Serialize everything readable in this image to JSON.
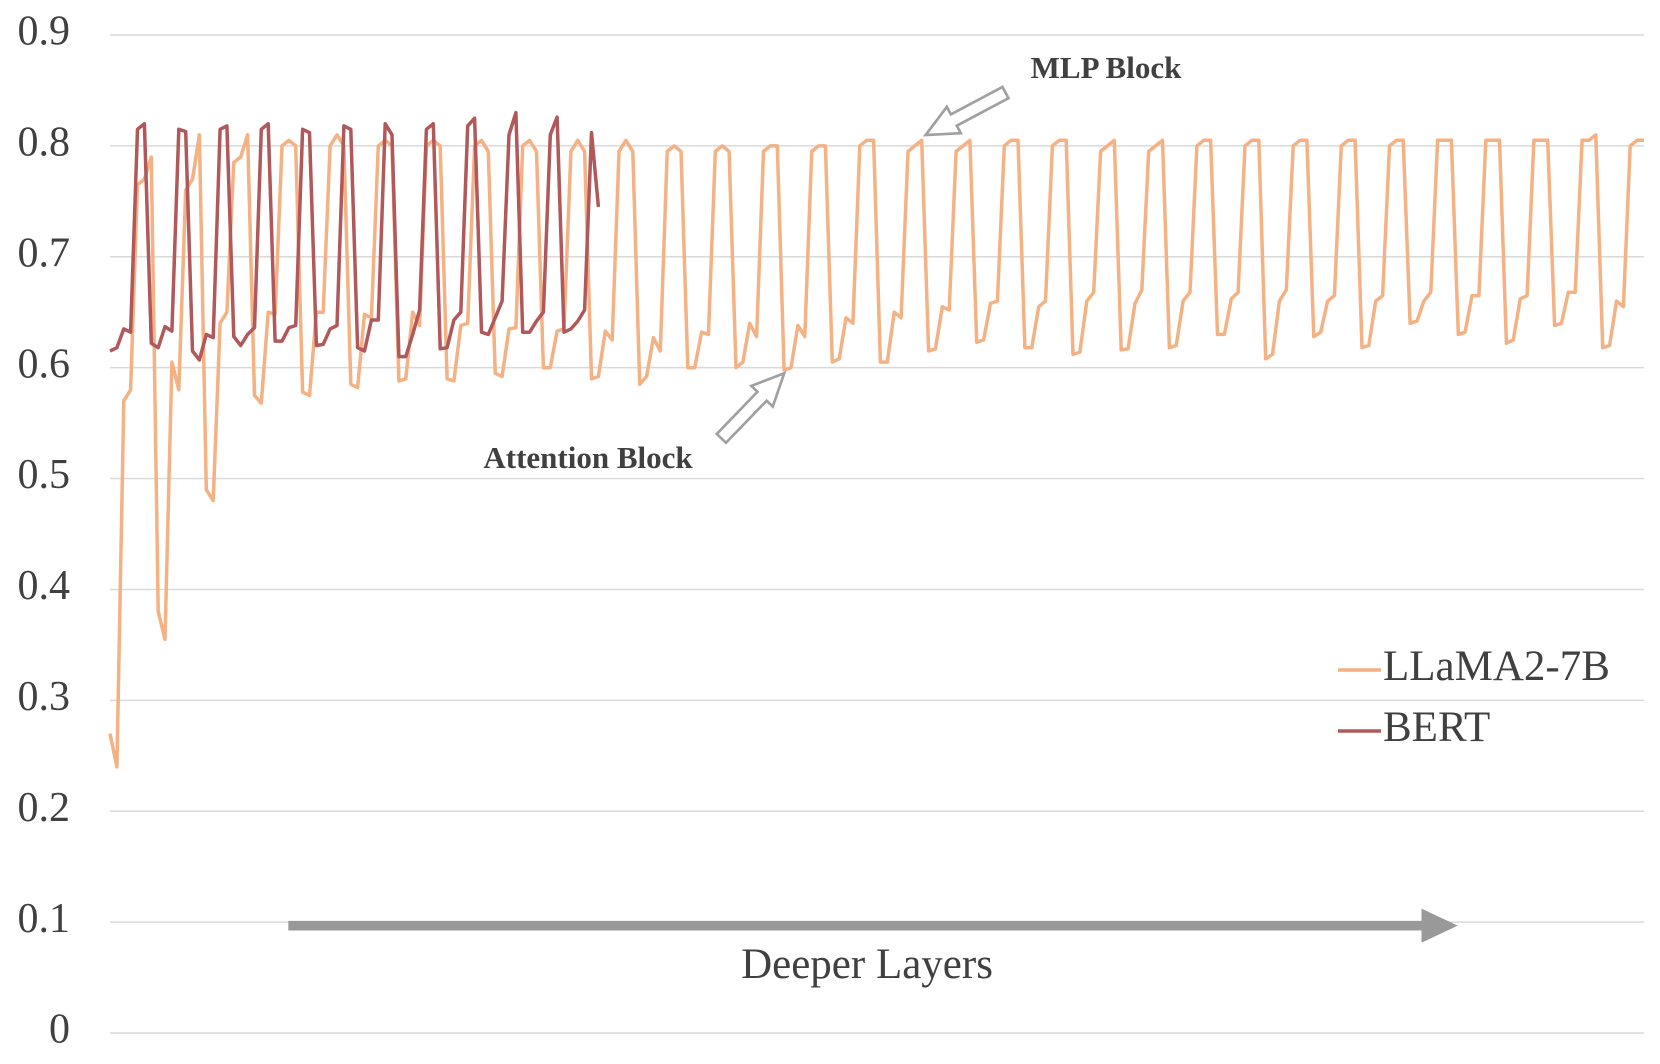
{
  "chart_data": {
    "type": "line",
    "annotations": {
      "mlp": "MLP Block",
      "attention": "Attention Block",
      "direction": "Deeper Layers"
    },
    "series": [
      {
        "name": "LLaMA2-7B",
        "color": "#f4b183",
        "values": [
          0.27,
          0.24,
          0.57,
          0.58,
          0.765,
          0.77,
          0.79,
          0.38,
          0.355,
          0.605,
          0.58,
          0.76,
          0.77,
          0.81,
          0.49,
          0.48,
          0.64,
          0.65,
          0.785,
          0.79,
          0.81,
          0.575,
          0.568,
          0.65,
          0.648,
          0.8,
          0.805,
          0.8,
          0.578,
          0.575,
          0.65,
          0.65,
          0.8,
          0.81,
          0.8,
          0.585,
          0.582,
          0.648,
          0.645,
          0.8,
          0.805,
          0.8,
          0.588,
          0.59,
          0.65,
          0.638,
          0.8,
          0.805,
          0.8,
          0.59,
          0.588,
          0.638,
          0.64,
          0.8,
          0.805,
          0.795,
          0.595,
          0.592,
          0.635,
          0.636,
          0.8,
          0.805,
          0.795,
          0.6,
          0.6,
          0.633,
          0.635,
          0.795,
          0.805,
          0.795,
          0.59,
          0.592,
          0.633,
          0.625,
          0.795,
          0.805,
          0.795,
          0.585,
          0.592,
          0.627,
          0.615,
          0.795,
          0.8,
          0.795,
          0.6,
          0.6,
          0.632,
          0.63,
          0.795,
          0.8,
          0.795,
          0.6,
          0.605,
          0.64,
          0.628,
          0.795,
          0.8,
          0.8,
          0.598,
          0.6,
          0.638,
          0.628,
          0.795,
          0.8,
          0.8,
          0.605,
          0.608,
          0.645,
          0.64,
          0.8,
          0.805,
          0.805,
          0.605,
          0.605,
          0.65,
          0.645,
          0.795,
          0.8,
          0.805,
          0.615,
          0.617,
          0.655,
          0.652,
          0.795,
          0.8,
          0.805,
          0.623,
          0.625,
          0.658,
          0.66,
          0.8,
          0.805,
          0.805,
          0.618,
          0.618,
          0.655,
          0.66,
          0.8,
          0.805,
          0.805,
          0.612,
          0.614,
          0.66,
          0.668,
          0.795,
          0.8,
          0.805,
          0.616,
          0.617,
          0.658,
          0.67,
          0.795,
          0.8,
          0.805,
          0.618,
          0.62,
          0.66,
          0.668,
          0.8,
          0.805,
          0.805,
          0.63,
          0.63,
          0.662,
          0.668,
          0.8,
          0.805,
          0.805,
          0.608,
          0.612,
          0.66,
          0.67,
          0.8,
          0.805,
          0.805,
          0.628,
          0.632,
          0.66,
          0.665,
          0.8,
          0.805,
          0.805,
          0.618,
          0.62,
          0.66,
          0.665,
          0.8,
          0.805,
          0.805,
          0.64,
          0.642,
          0.66,
          0.668,
          0.805,
          0.805,
          0.805,
          0.63,
          0.632,
          0.665,
          0.665,
          0.805,
          0.805,
          0.805,
          0.622,
          0.625,
          0.662,
          0.665,
          0.805,
          0.805,
          0.805,
          0.638,
          0.64,
          0.668,
          0.668,
          0.805,
          0.805,
          0.81,
          0.618,
          0.62,
          0.66,
          0.655,
          0.8,
          0.805,
          0.805
        ]
      },
      {
        "name": "BERT",
        "color": "#b0585a",
        "values": [
          0.615,
          0.618,
          0.635,
          0.632,
          0.815,
          0.82,
          0.622,
          0.618,
          0.637,
          0.633,
          0.815,
          0.813,
          0.615,
          0.607,
          0.63,
          0.627,
          0.815,
          0.818,
          0.628,
          0.62,
          0.63,
          0.636,
          0.815,
          0.82,
          0.624,
          0.624,
          0.636,
          0.638,
          0.815,
          0.812,
          0.62,
          0.621,
          0.635,
          0.638,
          0.818,
          0.815,
          0.618,
          0.615,
          0.643,
          0.643,
          0.82,
          0.81,
          0.61,
          0.61,
          0.63,
          0.652,
          0.815,
          0.82,
          0.617,
          0.618,
          0.643,
          0.65,
          0.818,
          0.825,
          0.632,
          0.63,
          0.645,
          0.66,
          0.81,
          0.83,
          0.632,
          0.632,
          0.642,
          0.65,
          0.81,
          0.826,
          0.632,
          0.635,
          0.642,
          0.652,
          0.812,
          0.745
        ]
      }
    ],
    "ylim": [
      0,
      0.9
    ],
    "yticks": [
      0,
      0.1,
      0.2,
      0.3,
      0.4,
      0.5,
      0.6,
      0.7,
      0.8,
      0.9
    ],
    "grid": true,
    "legend": "right"
  }
}
